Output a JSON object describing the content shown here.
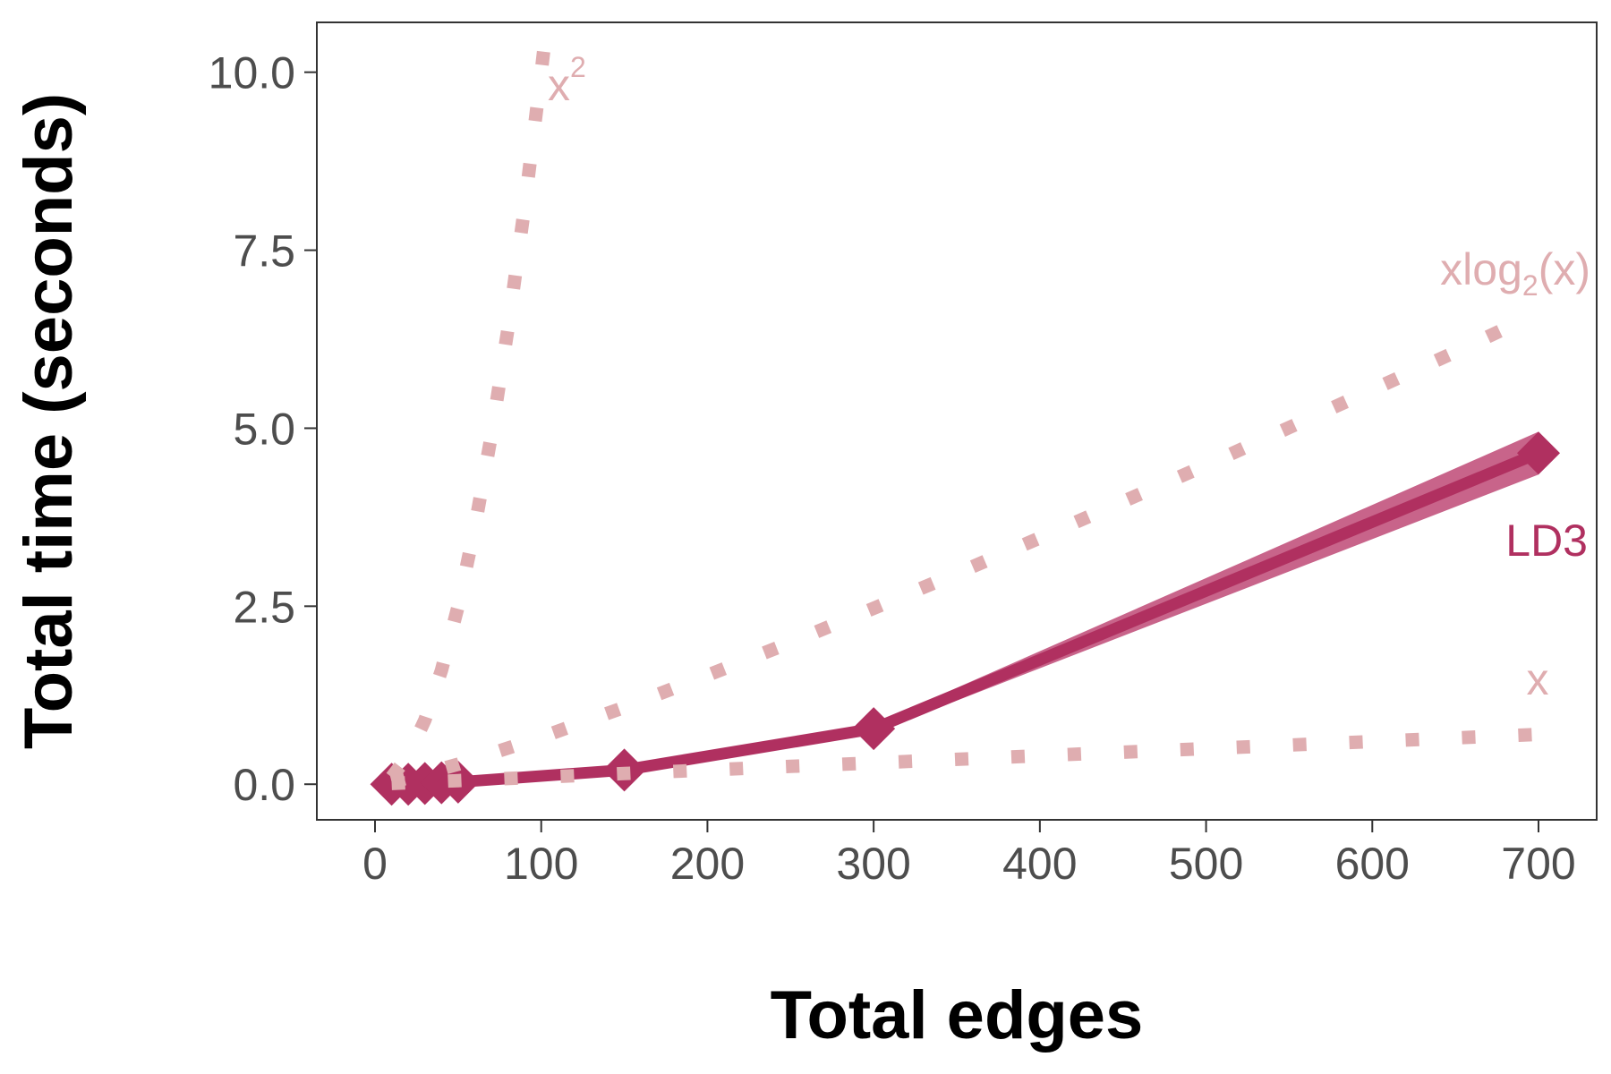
{
  "chart_data": {
    "type": "line",
    "xlabel": "Total edges",
    "ylabel": "Total time (seconds)",
    "xlim": [
      -35,
      735
    ],
    "ylim": [
      -0.5,
      10.7
    ],
    "x_ticks": [
      0,
      100,
      200,
      300,
      400,
      500,
      600,
      700
    ],
    "x_tick_labels": [
      "0",
      "100",
      "200",
      "300",
      "400",
      "500",
      "600",
      "700"
    ],
    "y_ticks": [
      0,
      2.5,
      5,
      7.5,
      10
    ],
    "y_tick_labels": [
      "0.0",
      "2.5",
      "5.0",
      "7.5",
      "10.0"
    ],
    "grid": false,
    "series": [
      {
        "name": "LD3",
        "style": "solid",
        "marker": "diamond",
        "color": "#b03060",
        "band_color": "#c8648a",
        "x": [
          10,
          20,
          30,
          40,
          50,
          150,
          300,
          700
        ],
        "y": [
          0.0,
          0.0,
          0.01,
          0.02,
          0.03,
          0.2,
          0.78,
          4.65
        ],
        "y_lower": [
          0.0,
          0.0,
          0.0,
          0.01,
          0.02,
          0.18,
          0.72,
          4.35
        ],
        "y_upper": [
          0.01,
          0.01,
          0.02,
          0.03,
          0.05,
          0.23,
          0.84,
          4.95
        ]
      },
      {
        "name": "x",
        "label_text": "x",
        "style": "dotted",
        "color": "#dfadb0",
        "x": [
          10,
          50,
          100,
          150,
          200,
          250,
          300,
          350,
          400,
          450,
          500,
          550,
          600,
          650,
          700
        ],
        "y": [
          0.01,
          0.05,
          0.1,
          0.15,
          0.2,
          0.25,
          0.3,
          0.35,
          0.4,
          0.45,
          0.5,
          0.55,
          0.6,
          0.65,
          0.7
        ]
      },
      {
        "name": "xlog2(x)",
        "label_text": "xlog",
        "label_sub": "2",
        "label_tail": "(x)",
        "style": "dotted",
        "color": "#dfadb0",
        "x": [
          10,
          30,
          50,
          75,
          100,
          150,
          200,
          250,
          300,
          350,
          400,
          450,
          500,
          550,
          600,
          650,
          700
        ],
        "y": [
          0.03,
          0.15,
          0.28,
          0.47,
          0.66,
          1.08,
          1.53,
          1.99,
          2.47,
          2.96,
          3.46,
          3.97,
          4.48,
          5.01,
          5.54,
          6.07,
          6.62
        ]
      },
      {
        "name": "x^2",
        "label_text": "x",
        "label_sup": "2",
        "style": "dotted",
        "color": "#dfadb0",
        "x": [
          10,
          20,
          30,
          40,
          50,
          60,
          70,
          80,
          90,
          100,
          104
        ],
        "y": [
          0.01,
          0.04,
          0.09,
          0.16,
          0.25,
          0.36,
          0.49,
          0.64,
          0.81,
          1.0,
          1.08
        ],
        "y_scale": 10
      }
    ]
  },
  "colors": {
    "ld3": "#b03060",
    "ld3_band": "#c8648a",
    "reference": "#dfadb0",
    "panel_border": "#333333",
    "tick_text": "#4d4d4d"
  }
}
